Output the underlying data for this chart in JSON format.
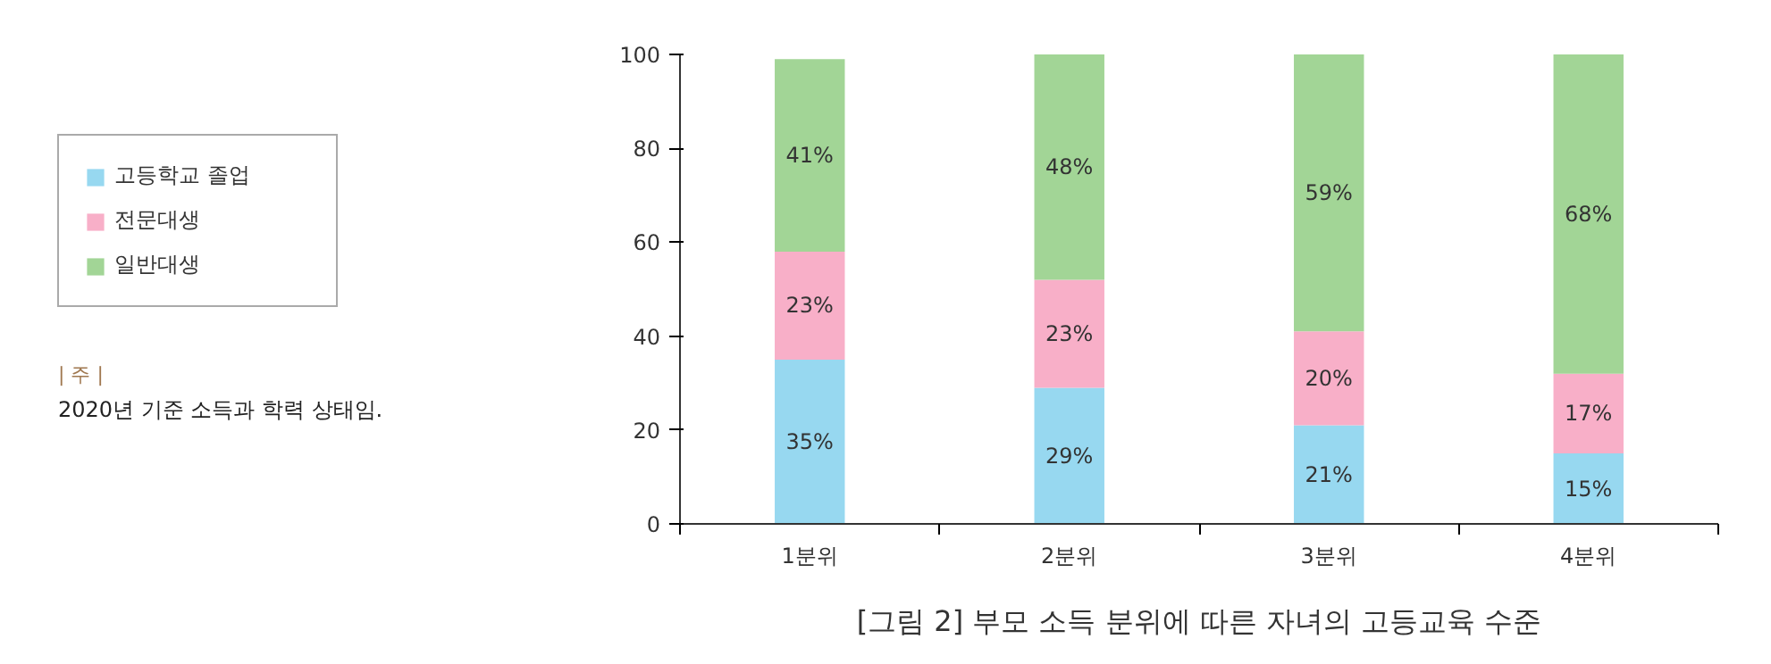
{
  "chart_data": {
    "type": "bar",
    "stacked": true,
    "title": "[그림 2] 부모 소득 분위에 따른 자녀의 고등교육 수준",
    "categories": [
      "1분위",
      "2분위",
      "3분위",
      "4분위"
    ],
    "series": [
      {
        "name": "고등학교 졸업",
        "color": "#97d8f0",
        "values": [
          35,
          29,
          21,
          15
        ],
        "value_labels": [
          "35%",
          "29%",
          "21%",
          "15%"
        ]
      },
      {
        "name": "전문대생",
        "color": "#f8afc8",
        "values": [
          23,
          23,
          20,
          17
        ],
        "value_labels": [
          "23%",
          "23%",
          "20%",
          "17%"
        ]
      },
      {
        "name": "일반대생",
        "color": "#a2d596",
        "values": [
          41,
          48,
          59,
          68
        ],
        "value_labels": [
          "41%",
          "48%",
          "59%",
          "68%"
        ]
      }
    ],
    "ylim": [
      0,
      100
    ],
    "yticks": [
      0,
      20,
      40,
      60,
      80,
      100
    ],
    "grid": false,
    "legend": "left",
    "annotations": [
      "| 주 |",
      "2020년 기준 소득과 학력 상태임."
    ]
  }
}
